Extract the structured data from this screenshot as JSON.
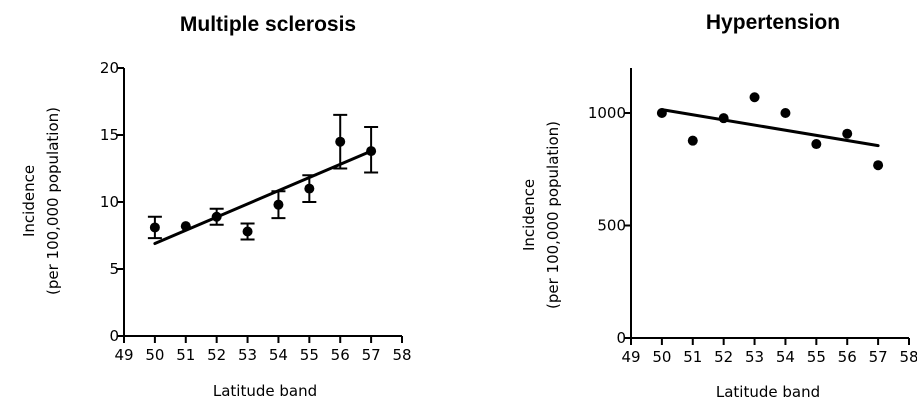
{
  "chart_data": [
    {
      "type": "scatter",
      "title": "Multiple sclerosis",
      "xlabel": "Latitude band",
      "ylabel": [
        "Incidence",
        "(per 100,000 population)"
      ],
      "xlim": [
        49,
        58
      ],
      "ylim": [
        0,
        20
      ],
      "xticks": [
        49,
        50,
        51,
        52,
        53,
        54,
        55,
        56,
        57,
        58
      ],
      "yticks": [
        0,
        5,
        10,
        15,
        20
      ],
      "points": [
        {
          "x": 50,
          "y": 8.1,
          "err_low": 7.3,
          "err_high": 8.9
        },
        {
          "x": 51,
          "y": 8.2
        },
        {
          "x": 52,
          "y": 8.9,
          "err_low": 8.3,
          "err_high": 9.5
        },
        {
          "x": 53,
          "y": 7.8,
          "err_low": 7.2,
          "err_high": 8.4
        },
        {
          "x": 54,
          "y": 9.8,
          "err_low": 8.8,
          "err_high": 10.8
        },
        {
          "x": 55,
          "y": 11.0,
          "err_low": 10.0,
          "err_high": 12.0
        },
        {
          "x": 56,
          "y": 14.5,
          "err_low": 12.5,
          "err_high": 16.5
        },
        {
          "x": 57,
          "y": 13.8,
          "err_low": 12.2,
          "err_high": 15.6
        }
      ],
      "fit": {
        "x": [
          50,
          57
        ],
        "y": [
          6.9,
          13.8
        ]
      },
      "grid": false
    },
    {
      "type": "scatter",
      "title": "Hypertension",
      "xlabel": "Latitude band",
      "ylabel": [
        "Incidence",
        "(per 100,000 population)"
      ],
      "xlim": [
        49,
        58
      ],
      "ylim": [
        0,
        1200
      ],
      "xticks": [
        49,
        50,
        51,
        52,
        53,
        54,
        55,
        56,
        57,
        58
      ],
      "yticks": [
        0,
        500,
        1000
      ],
      "points": [
        {
          "x": 50,
          "y": 1000
        },
        {
          "x": 51,
          "y": 877
        },
        {
          "x": 52,
          "y": 977
        },
        {
          "x": 53,
          "y": 1070
        },
        {
          "x": 54,
          "y": 1000
        },
        {
          "x": 55,
          "y": 862
        },
        {
          "x": 56,
          "y": 908
        },
        {
          "x": 57,
          "y": 768
        }
      ],
      "fit": {
        "x": [
          50,
          57
        ],
        "y": [
          1015,
          855
        ]
      },
      "grid": false
    }
  ]
}
